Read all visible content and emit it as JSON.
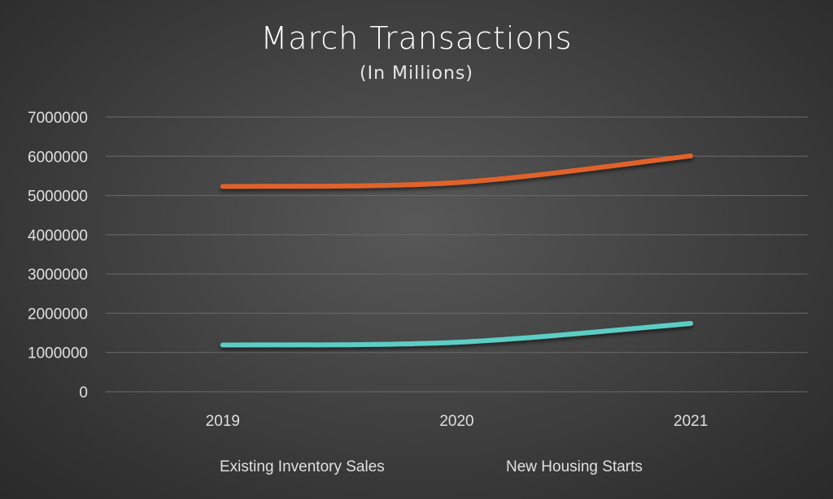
{
  "chart_data": {
    "type": "line",
    "title": "March Transactions",
    "subtitle": "(In Millions)",
    "xlabel": "",
    "ylabel": "",
    "categories": [
      "2019",
      "2020",
      "2021"
    ],
    "ylim": [
      0,
      7000000
    ],
    "yticks": [
      "0",
      "1000000",
      "2000000",
      "3000000",
      "4000000",
      "5000000",
      "6000000",
      "7000000"
    ],
    "grid": true,
    "legend_position": "bottom",
    "series": [
      {
        "name": "Existing Inventory Sales",
        "color": "#e0622a",
        "values": [
          5230000,
          5330000,
          6010000
        ]
      },
      {
        "name": "New Housing Starts",
        "color": "#5ccdc4",
        "values": [
          1190000,
          1260000,
          1740000
        ]
      }
    ]
  }
}
